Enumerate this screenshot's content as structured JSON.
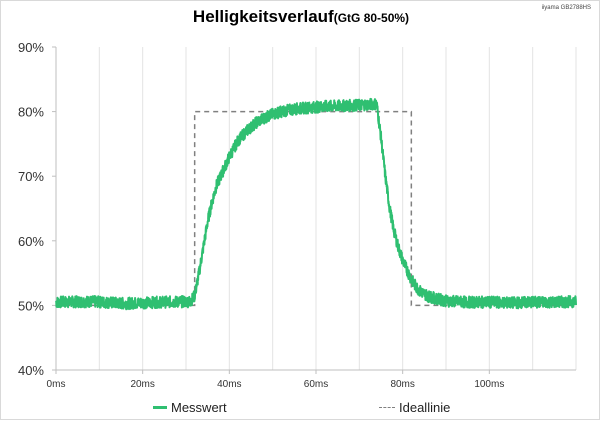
{
  "header": {
    "title": "Helligkeitsverlauf",
    "subtitle": "(GtG 80-50%)",
    "corner_label": "iiyama GB2788HS"
  },
  "colors": {
    "measured": "#2fbf71",
    "ideal": "#808080",
    "grid": "#e3e3e3",
    "axis": "#bfbfbf"
  },
  "legend": {
    "measured_label": "Messwert",
    "ideal_label": "Ideallinie"
  },
  "chart_data": {
    "type": "line",
    "title": "Helligkeitsverlauf",
    "subtitle": "(GtG 80-50%)",
    "xlim": [
      0,
      120
    ],
    "ylim": [
      40,
      90
    ],
    "x_ticks": [
      0,
      20,
      40,
      60,
      80,
      100
    ],
    "x_tick_labels": [
      "0ms",
      "20ms",
      "40ms",
      "60ms",
      "80ms",
      "100ms"
    ],
    "y_ticks": [
      40,
      50,
      60,
      70,
      80,
      90
    ],
    "y_tick_labels": [
      "40%",
      "50%",
      "60%",
      "70%",
      "80%",
      "90%"
    ],
    "grid": "vertical",
    "legend_position": "bottom",
    "series": [
      {
        "name": "Messwert",
        "x": [
          0,
          8,
          16,
          24,
          31,
          32,
          33,
          34,
          35,
          36,
          37,
          38,
          39,
          40,
          42,
          44,
          46,
          48,
          50,
          52,
          55,
          58,
          62,
          66,
          70,
          74,
          75,
          76,
          77,
          78,
          79,
          80,
          81,
          82,
          83,
          84,
          86,
          88,
          90,
          95,
          100,
          105,
          110,
          115,
          120
        ],
        "y": [
          50.5,
          50.6,
          50.3,
          50.5,
          50.6,
          51.5,
          55,
          59,
          63,
          66,
          68.5,
          70,
          71.5,
          73,
          75.5,
          77,
          78.2,
          79,
          79.6,
          80,
          80.4,
          80.6,
          80.8,
          80.9,
          81,
          81.2,
          76,
          70,
          65,
          61.5,
          59,
          57,
          55.5,
          54,
          53,
          52.2,
          51.4,
          51,
          50.7,
          50.5,
          50.5,
          50.4,
          50.5,
          50.5,
          50.6
        ]
      },
      {
        "name": "Ideallinie",
        "x": [
          0,
          32,
          32,
          82,
          82,
          120
        ],
        "y": [
          50,
          50,
          80,
          80,
          50,
          50
        ]
      }
    ]
  }
}
